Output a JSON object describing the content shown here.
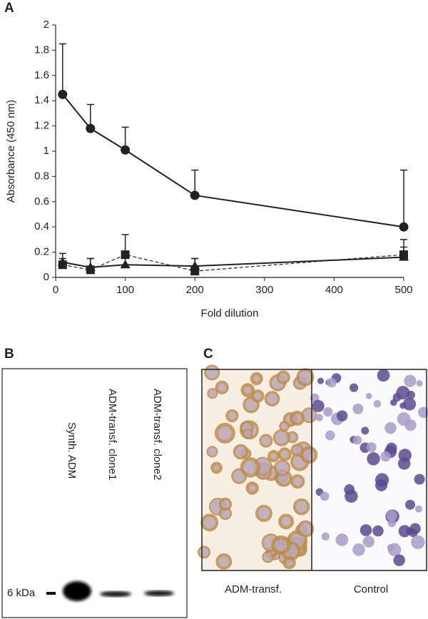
{
  "chart_data": {
    "type": "line",
    "panel_label": "A",
    "x_label": "Fold dilution",
    "y_label": "Absorbance (450 nm)",
    "x": [
      10,
      50,
      100,
      200,
      500
    ],
    "series": [
      {
        "color": "#222222",
        "marker": "circle",
        "dashed": false,
        "values": [
          1.45,
          1.18,
          1.01,
          0.65,
          0.4
        ],
        "errors": [
          0.4,
          0.19,
          0.18,
          0.2,
          0.45
        ]
      },
      {
        "color": "#222222",
        "marker": "triangle",
        "dashed": false,
        "values": [
          0.12,
          0.08,
          0.1,
          0.09,
          0.16
        ],
        "errors": [
          0.07,
          0.07,
          0.06,
          0.06,
          0.08
        ]
      },
      {
        "color": "#222222",
        "marker": "square",
        "dashed": true,
        "values": [
          0.1,
          0.06,
          0.18,
          0.05,
          0.18
        ],
        "errors": [
          0.05,
          0.09,
          0.16,
          0.1,
          0.12
        ]
      }
    ],
    "xlim": [
      0,
      500
    ],
    "xticks": [
      0,
      100,
      200,
      300,
      400,
      500
    ],
    "ylim": [
      0,
      2
    ],
    "yticks": [
      0,
      0.2,
      0.4,
      0.6,
      0.8,
      1,
      1.2,
      1.4,
      1.6,
      1.8,
      2
    ]
  },
  "panel_b": {
    "label": "B",
    "lanes": [
      "Synth. ADM",
      "ADM-transf. clone1",
      "ADM-transf. clone2"
    ],
    "marker": "6 kDa"
  },
  "panel_c": {
    "label": "C",
    "captions": [
      "ADM-transf.",
      "Control"
    ]
  }
}
